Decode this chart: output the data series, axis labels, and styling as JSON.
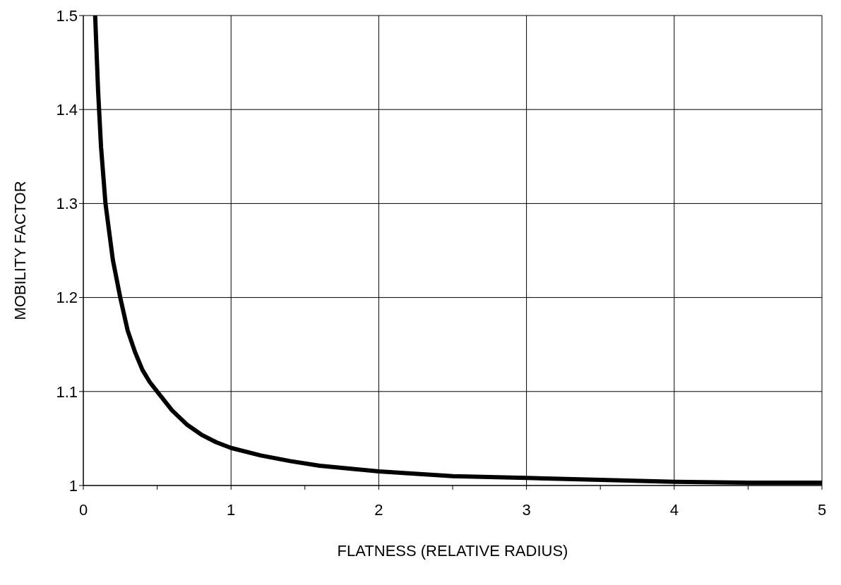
{
  "chart_data": {
    "type": "line",
    "xlabel": "FLATNESS  (RELATIVE  RADIUS)",
    "ylabel": "MOBILITY  FACTOR",
    "series": [
      {
        "color": "#000000",
        "x": [
          0.08,
          0.1,
          0.12,
          0.15,
          0.2,
          0.25,
          0.3,
          0.35,
          0.4,
          0.45,
          0.5,
          0.6,
          0.7,
          0.8,
          0.9,
          1,
          1.2,
          1.4,
          1.6,
          1.8,
          2,
          2.5,
          3,
          3.5,
          4,
          4.5,
          5
        ],
        "values": [
          1.5,
          1.42,
          1.36,
          1.3,
          1.24,
          1.2,
          1.165,
          1.142,
          1.123,
          1.11,
          1.1,
          1.08,
          1.065,
          1.054,
          1.046,
          1.04,
          1.032,
          1.026,
          1.021,
          1.018,
          1.015,
          1.01,
          1.008,
          1.006,
          1.004,
          1.003,
          1.003
        ]
      }
    ],
    "xlim": [
      0,
      5
    ],
    "xticks": [
      0,
      {
        "value": 0.5,
        "label": null
      },
      1,
      {
        "value": 1.5,
        "label": null
      },
      2,
      {
        "value": 2.5,
        "label": null
      },
      3,
      {
        "value": 3.5,
        "label": null
      },
      4,
      {
        "value": 4.5,
        "label": null
      },
      5
    ],
    "ylim": [
      1,
      1.5
    ],
    "yticks": [
      1,
      1.1,
      1.2,
      1.3,
      1.4,
      1.5
    ],
    "grid": true,
    "marker": "none",
    "line_style": "solid"
  }
}
